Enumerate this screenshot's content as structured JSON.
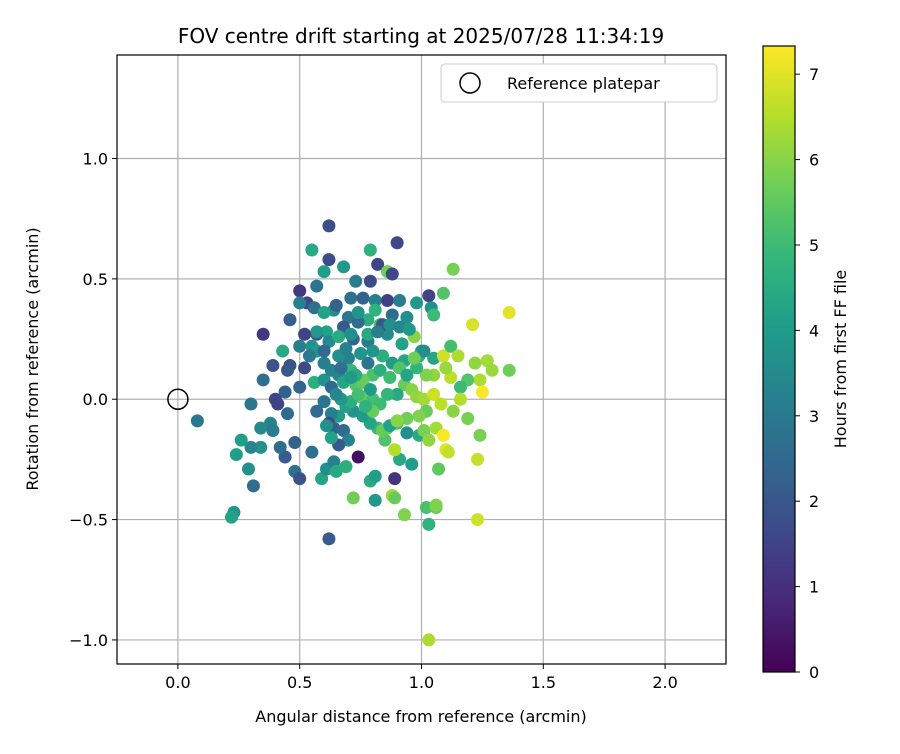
{
  "chart_data": {
    "type": "scatter",
    "title": "FOV centre drift starting at 2025/07/28 11:34:19",
    "xlabel": "Angular distance from reference (arcmin)",
    "ylabel": "Rotation from reference (arcmin)",
    "xlim": [
      -0.25,
      2.25
    ],
    "ylim": [
      -1.1,
      1.43
    ],
    "xticks": [
      0.0,
      0.5,
      1.0,
      1.5,
      2.0
    ],
    "xtick_labels": [
      "0.0",
      "0.5",
      "1.0",
      "1.5",
      "2.0"
    ],
    "yticks": [
      -1.0,
      -0.5,
      0.0,
      0.5,
      1.0
    ],
    "ytick_labels": [
      "−1.0",
      "−0.5",
      "0.0",
      "0.5",
      "1.0"
    ],
    "grid": true,
    "legend": {
      "position": "top-right",
      "label": "Reference platepar"
    },
    "reference_point": {
      "x": 0.0,
      "y": 0.0
    },
    "colorbar": {
      "label": "Hours from first FF file",
      "min": 0,
      "max": 7.33,
      "ticks": [
        0,
        1,
        2,
        3,
        4,
        5,
        6,
        7
      ],
      "colormap": "viridis"
    },
    "colormap_stops": [
      "#440154",
      "#482878",
      "#3e4989",
      "#31688e",
      "#26828e",
      "#1f9e89",
      "#35b779",
      "#6ece58",
      "#b5de2b",
      "#fde725"
    ],
    "series": [
      {
        "points": [
          [
            0.62,
            0.72,
            1.8
          ],
          [
            0.9,
            0.65,
            1.6
          ],
          [
            0.55,
            0.62,
            4.4
          ],
          [
            0.79,
            0.62,
            4.7
          ],
          [
            0.68,
            0.55,
            3.9
          ],
          [
            0.62,
            0.58,
            1.7
          ],
          [
            0.82,
            0.56,
            1.5
          ],
          [
            0.6,
            0.53,
            4.1
          ],
          [
            0.86,
            0.53,
            5.7
          ],
          [
            0.88,
            0.52,
            1.6
          ],
          [
            0.79,
            0.49,
            1.7
          ],
          [
            0.73,
            0.49,
            3.1
          ],
          [
            1.13,
            0.54,
            5.8
          ],
          [
            1.09,
            0.44,
            5.3
          ],
          [
            1.03,
            0.43,
            1.5
          ],
          [
            0.57,
            0.47,
            2.8
          ],
          [
            0.5,
            0.45,
            1.2
          ],
          [
            0.53,
            0.4,
            1.6
          ],
          [
            0.5,
            0.4,
            3.2
          ],
          [
            0.56,
            0.38,
            2.7
          ],
          [
            0.64,
            0.37,
            3.6
          ],
          [
            0.65,
            0.39,
            2.3
          ],
          [
            0.7,
            0.34,
            2.9
          ],
          [
            0.71,
            0.42,
            2.7
          ],
          [
            0.76,
            0.42,
            2.3
          ],
          [
            0.81,
            0.41,
            3.2
          ],
          [
            0.86,
            0.41,
            1.4
          ],
          [
            0.91,
            0.41,
            3.1
          ],
          [
            0.98,
            0.4,
            3.9
          ],
          [
            1.04,
            0.38,
            3.7
          ],
          [
            1.05,
            0.35,
            5.0
          ],
          [
            0.94,
            0.34,
            3.6
          ],
          [
            0.88,
            0.35,
            2.6
          ],
          [
            0.78,
            0.33,
            4.6
          ],
          [
            0.83,
            0.31,
            5.1
          ],
          [
            0.74,
            0.32,
            2.6
          ],
          [
            0.68,
            0.3,
            2.1
          ],
          [
            0.61,
            0.28,
            4.2
          ],
          [
            0.57,
            0.27,
            1.9
          ],
          [
            0.46,
            0.33,
            2.2
          ],
          [
            0.35,
            0.27,
            1.2
          ],
          [
            0.39,
            0.14,
            1.9
          ],
          [
            0.43,
            0.2,
            4.4
          ],
          [
            0.5,
            0.22,
            3.1
          ],
          [
            0.55,
            0.22,
            3.7
          ],
          [
            0.62,
            0.24,
            3.5
          ],
          [
            0.66,
            0.26,
            4.5
          ],
          [
            0.72,
            0.25,
            2.4
          ],
          [
            0.78,
            0.24,
            3.0
          ],
          [
            0.86,
            0.27,
            3.5
          ],
          [
            0.92,
            0.23,
            4.2
          ],
          [
            0.97,
            0.26,
            6.0
          ],
          [
            1.0,
            0.2,
            3.6
          ],
          [
            1.05,
            0.17,
            4.3
          ],
          [
            1.09,
            0.18,
            6.8
          ],
          [
            1.12,
            0.22,
            5.1
          ],
          [
            1.15,
            0.18,
            6.4
          ],
          [
            1.21,
            0.31,
            6.9
          ],
          [
            1.36,
            0.36,
            7.0
          ],
          [
            1.22,
            0.15,
            6.1
          ],
          [
            1.27,
            0.16,
            6.3
          ],
          [
            1.29,
            0.12,
            6.2
          ],
          [
            1.36,
            0.12,
            5.7
          ],
          [
            1.24,
            0.08,
            6.4
          ],
          [
            1.19,
            0.08,
            5.3
          ],
          [
            1.16,
            0.05,
            5.0
          ],
          [
            1.12,
            0.09,
            6.6
          ],
          [
            1.1,
            0.13,
            6.2
          ],
          [
            1.05,
            0.1,
            6.1
          ],
          [
            1.02,
            0.1,
            5.9
          ],
          [
            0.98,
            0.13,
            4.8
          ],
          [
            0.93,
            0.16,
            4.3
          ],
          [
            0.88,
            0.15,
            4.0
          ],
          [
            0.84,
            0.18,
            4.6
          ],
          [
            0.78,
            0.15,
            2.9
          ],
          [
            0.75,
            0.19,
            3.8
          ],
          [
            0.7,
            0.17,
            3.3
          ],
          [
            0.66,
            0.18,
            3.7
          ],
          [
            0.6,
            0.15,
            3.1
          ],
          [
            0.57,
            0.2,
            3.9
          ],
          [
            0.52,
            0.13,
            1.7
          ],
          [
            0.46,
            0.14,
            1.9
          ],
          [
            0.45,
            0.12,
            2.0
          ],
          [
            0.35,
            0.08,
            2.7
          ],
          [
            0.44,
            0.03,
            2.3
          ],
          [
            0.4,
            0.0,
            1.6
          ],
          [
            0.41,
            -0.02,
            1.5
          ],
          [
            0.45,
            -0.06,
            2.5
          ],
          [
            0.5,
            0.05,
            2.4
          ],
          [
            0.56,
            0.07,
            4.6
          ],
          [
            0.6,
            0.08,
            3.8
          ],
          [
            0.63,
            0.05,
            2.5
          ],
          [
            0.66,
            0.1,
            3.4
          ],
          [
            0.68,
            0.07,
            4.3
          ],
          [
            0.71,
            0.12,
            4.9
          ],
          [
            0.73,
            0.06,
            5.3
          ],
          [
            0.76,
            0.07,
            5.5
          ],
          [
            0.8,
            0.1,
            5.2
          ],
          [
            0.83,
            0.12,
            4.6
          ],
          [
            0.87,
            0.09,
            5.0
          ],
          [
            0.91,
            0.13,
            5.3
          ],
          [
            0.93,
            0.06,
            5.6
          ],
          [
            0.96,
            0.04,
            6.0
          ],
          [
            0.98,
            0.01,
            6.1
          ],
          [
            1.01,
            0.0,
            6.3
          ],
          [
            1.05,
            0.02,
            6.8
          ],
          [
            1.08,
            -0.02,
            6.6
          ],
          [
            1.02,
            -0.05,
            5.6
          ],
          [
            0.99,
            -0.07,
            5.9
          ],
          [
            0.94,
            -0.08,
            5.7
          ],
          [
            0.9,
            -0.1,
            5.2
          ],
          [
            0.86,
            -0.12,
            5.5
          ],
          [
            0.82,
            -0.12,
            4.9
          ],
          [
            0.79,
            -0.1,
            4.3
          ],
          [
            0.76,
            -0.07,
            4.0
          ],
          [
            0.72,
            -0.05,
            3.8
          ],
          [
            0.69,
            -0.03,
            4.2
          ],
          [
            0.66,
            -0.07,
            4.0
          ],
          [
            0.63,
            -0.06,
            3.2
          ],
          [
            0.6,
            -0.01,
            2.8
          ],
          [
            0.57,
            -0.05,
            2.5
          ],
          [
            0.62,
            -0.1,
            1.7
          ],
          [
            0.64,
            -0.12,
            2.3
          ],
          [
            0.68,
            -0.13,
            2.6
          ],
          [
            0.7,
            -0.17,
            3.3
          ],
          [
            0.66,
            -0.19,
            2.0
          ],
          [
            0.63,
            -0.16,
            4.2
          ],
          [
            0.61,
            -0.11,
            3.7
          ],
          [
            0.48,
            -0.18,
            2.3
          ],
          [
            0.44,
            -0.24,
            2.1
          ],
          [
            0.42,
            -0.2,
            2.6
          ],
          [
            0.34,
            -0.2,
            3.7
          ],
          [
            0.3,
            -0.2,
            3.4
          ],
          [
            0.26,
            -0.17,
            4.1
          ],
          [
            0.24,
            -0.23,
            4.1
          ],
          [
            0.29,
            -0.29,
            3.7
          ],
          [
            0.31,
            -0.36,
            2.6
          ],
          [
            0.23,
            -0.47,
            3.8
          ],
          [
            0.22,
            -0.49,
            4.2
          ],
          [
            0.08,
            -0.09,
            2.9
          ],
          [
            0.3,
            -0.02,
            2.9
          ],
          [
            0.38,
            -0.1,
            3.3
          ],
          [
            0.34,
            -0.12,
            3.5
          ],
          [
            0.39,
            -0.13,
            3.1
          ],
          [
            0.48,
            -0.3,
            2.7
          ],
          [
            0.5,
            -0.33,
            1.9
          ],
          [
            0.55,
            -0.22,
            2.7
          ],
          [
            0.59,
            -0.33,
            4.3
          ],
          [
            0.61,
            -0.29,
            3.6
          ],
          [
            0.64,
            -0.26,
            3.3
          ],
          [
            0.65,
            -0.3,
            4.4
          ],
          [
            0.69,
            -0.28,
            4.6
          ],
          [
            0.74,
            -0.24,
            0.3
          ],
          [
            0.72,
            -0.41,
            5.7
          ],
          [
            0.79,
            -0.34,
            4.5
          ],
          [
            0.81,
            -0.32,
            4.1
          ],
          [
            0.81,
            -0.42,
            3.9
          ],
          [
            0.88,
            -0.4,
            6.3
          ],
          [
            0.89,
            -0.41,
            5.6
          ],
          [
            0.93,
            -0.48,
            5.9
          ],
          [
            0.89,
            -0.33,
            1.1
          ],
          [
            0.91,
            -0.25,
            4.4
          ],
          [
            0.96,
            -0.27,
            4.1
          ],
          [
            0.89,
            -0.21,
            6.5
          ],
          [
            0.85,
            -0.17,
            5.3
          ],
          [
            0.84,
            -0.13,
            5.6
          ],
          [
            0.87,
            -0.11,
            4.2
          ],
          [
            0.9,
            -0.09,
            6.0
          ],
          [
            0.94,
            -0.14,
            3.6
          ],
          [
            0.99,
            -0.15,
            4.4
          ],
          [
            1.01,
            -0.13,
            5.8
          ],
          [
            1.03,
            -0.17,
            6.1
          ],
          [
            1.06,
            -0.12,
            6.3
          ],
          [
            1.09,
            -0.15,
            7.3
          ],
          [
            1.1,
            -0.21,
            7.0
          ],
          [
            1.11,
            -0.22,
            6.7
          ],
          [
            1.07,
            -0.29,
            5.5
          ],
          [
            1.02,
            -0.45,
            5.2
          ],
          [
            1.06,
            -0.45,
            5.6
          ],
          [
            1.03,
            -0.52,
            4.7
          ],
          [
            1.06,
            -0.44,
            5.9
          ],
          [
            1.23,
            -0.25,
            6.7
          ],
          [
            1.24,
            -0.15,
            5.8
          ],
          [
            1.19,
            -0.08,
            5.8
          ],
          [
            1.13,
            -0.05,
            6.0
          ],
          [
            1.16,
            0.0,
            6.5
          ],
          [
            1.25,
            0.03,
            7.3
          ],
          [
            1.23,
            -0.5,
            6.8
          ],
          [
            1.03,
            -1.0,
            6.4
          ],
          [
            0.62,
            -0.58,
            2.1
          ],
          [
            0.76,
            0.08,
            5.6
          ],
          [
            0.8,
            0.0,
            5.1
          ],
          [
            0.79,
            0.04,
            4.0
          ],
          [
            0.75,
            0.01,
            5.5
          ],
          [
            0.71,
            -0.01,
            4.6
          ],
          [
            0.67,
            0.0,
            3.9
          ],
          [
            0.65,
            0.02,
            3.4
          ],
          [
            0.73,
            0.1,
            4.5
          ],
          [
            0.69,
            0.21,
            3.3
          ],
          [
            0.71,
            0.27,
            3.7
          ],
          [
            0.74,
            0.36,
            3.8
          ],
          [
            0.81,
            0.37,
            4.7
          ],
          [
            0.84,
            0.31,
            2.0
          ],
          [
            0.87,
            0.31,
            3.6
          ],
          [
            0.91,
            0.3,
            3.4
          ],
          [
            0.95,
            0.29,
            3.9
          ],
          [
            0.99,
            0.18,
            4.6
          ],
          [
            1.01,
            0.2,
            3.6
          ],
          [
            0.97,
            0.17,
            5.7
          ],
          [
            0.94,
            0.1,
            4.3
          ],
          [
            0.9,
            0.02,
            4.4
          ],
          [
            0.86,
            0.02,
            4.8
          ],
          [
            0.83,
            -0.02,
            5.0
          ],
          [
            0.8,
            -0.05,
            5.6
          ],
          [
            0.77,
            -0.03,
            4.7
          ],
          [
            0.6,
            0.36,
            4.2
          ],
          [
            0.57,
            0.28,
            3.9
          ],
          [
            0.52,
            0.27,
            1.5
          ],
          [
            0.54,
            0.18,
            3.0
          ],
          [
            0.6,
            0.2,
            2.5
          ],
          [
            0.63,
            0.12,
            3.2
          ],
          [
            0.67,
            0.13,
            2.7
          ],
          [
            0.71,
            0.09,
            3.9
          ],
          [
            0.74,
            0.02,
            5.1
          ],
          [
            0.78,
            0.27,
            4.4
          ],
          [
            0.8,
            0.2,
            3.8
          ],
          [
            0.82,
            0.28,
            3.1
          ]
        ]
      }
    ]
  }
}
